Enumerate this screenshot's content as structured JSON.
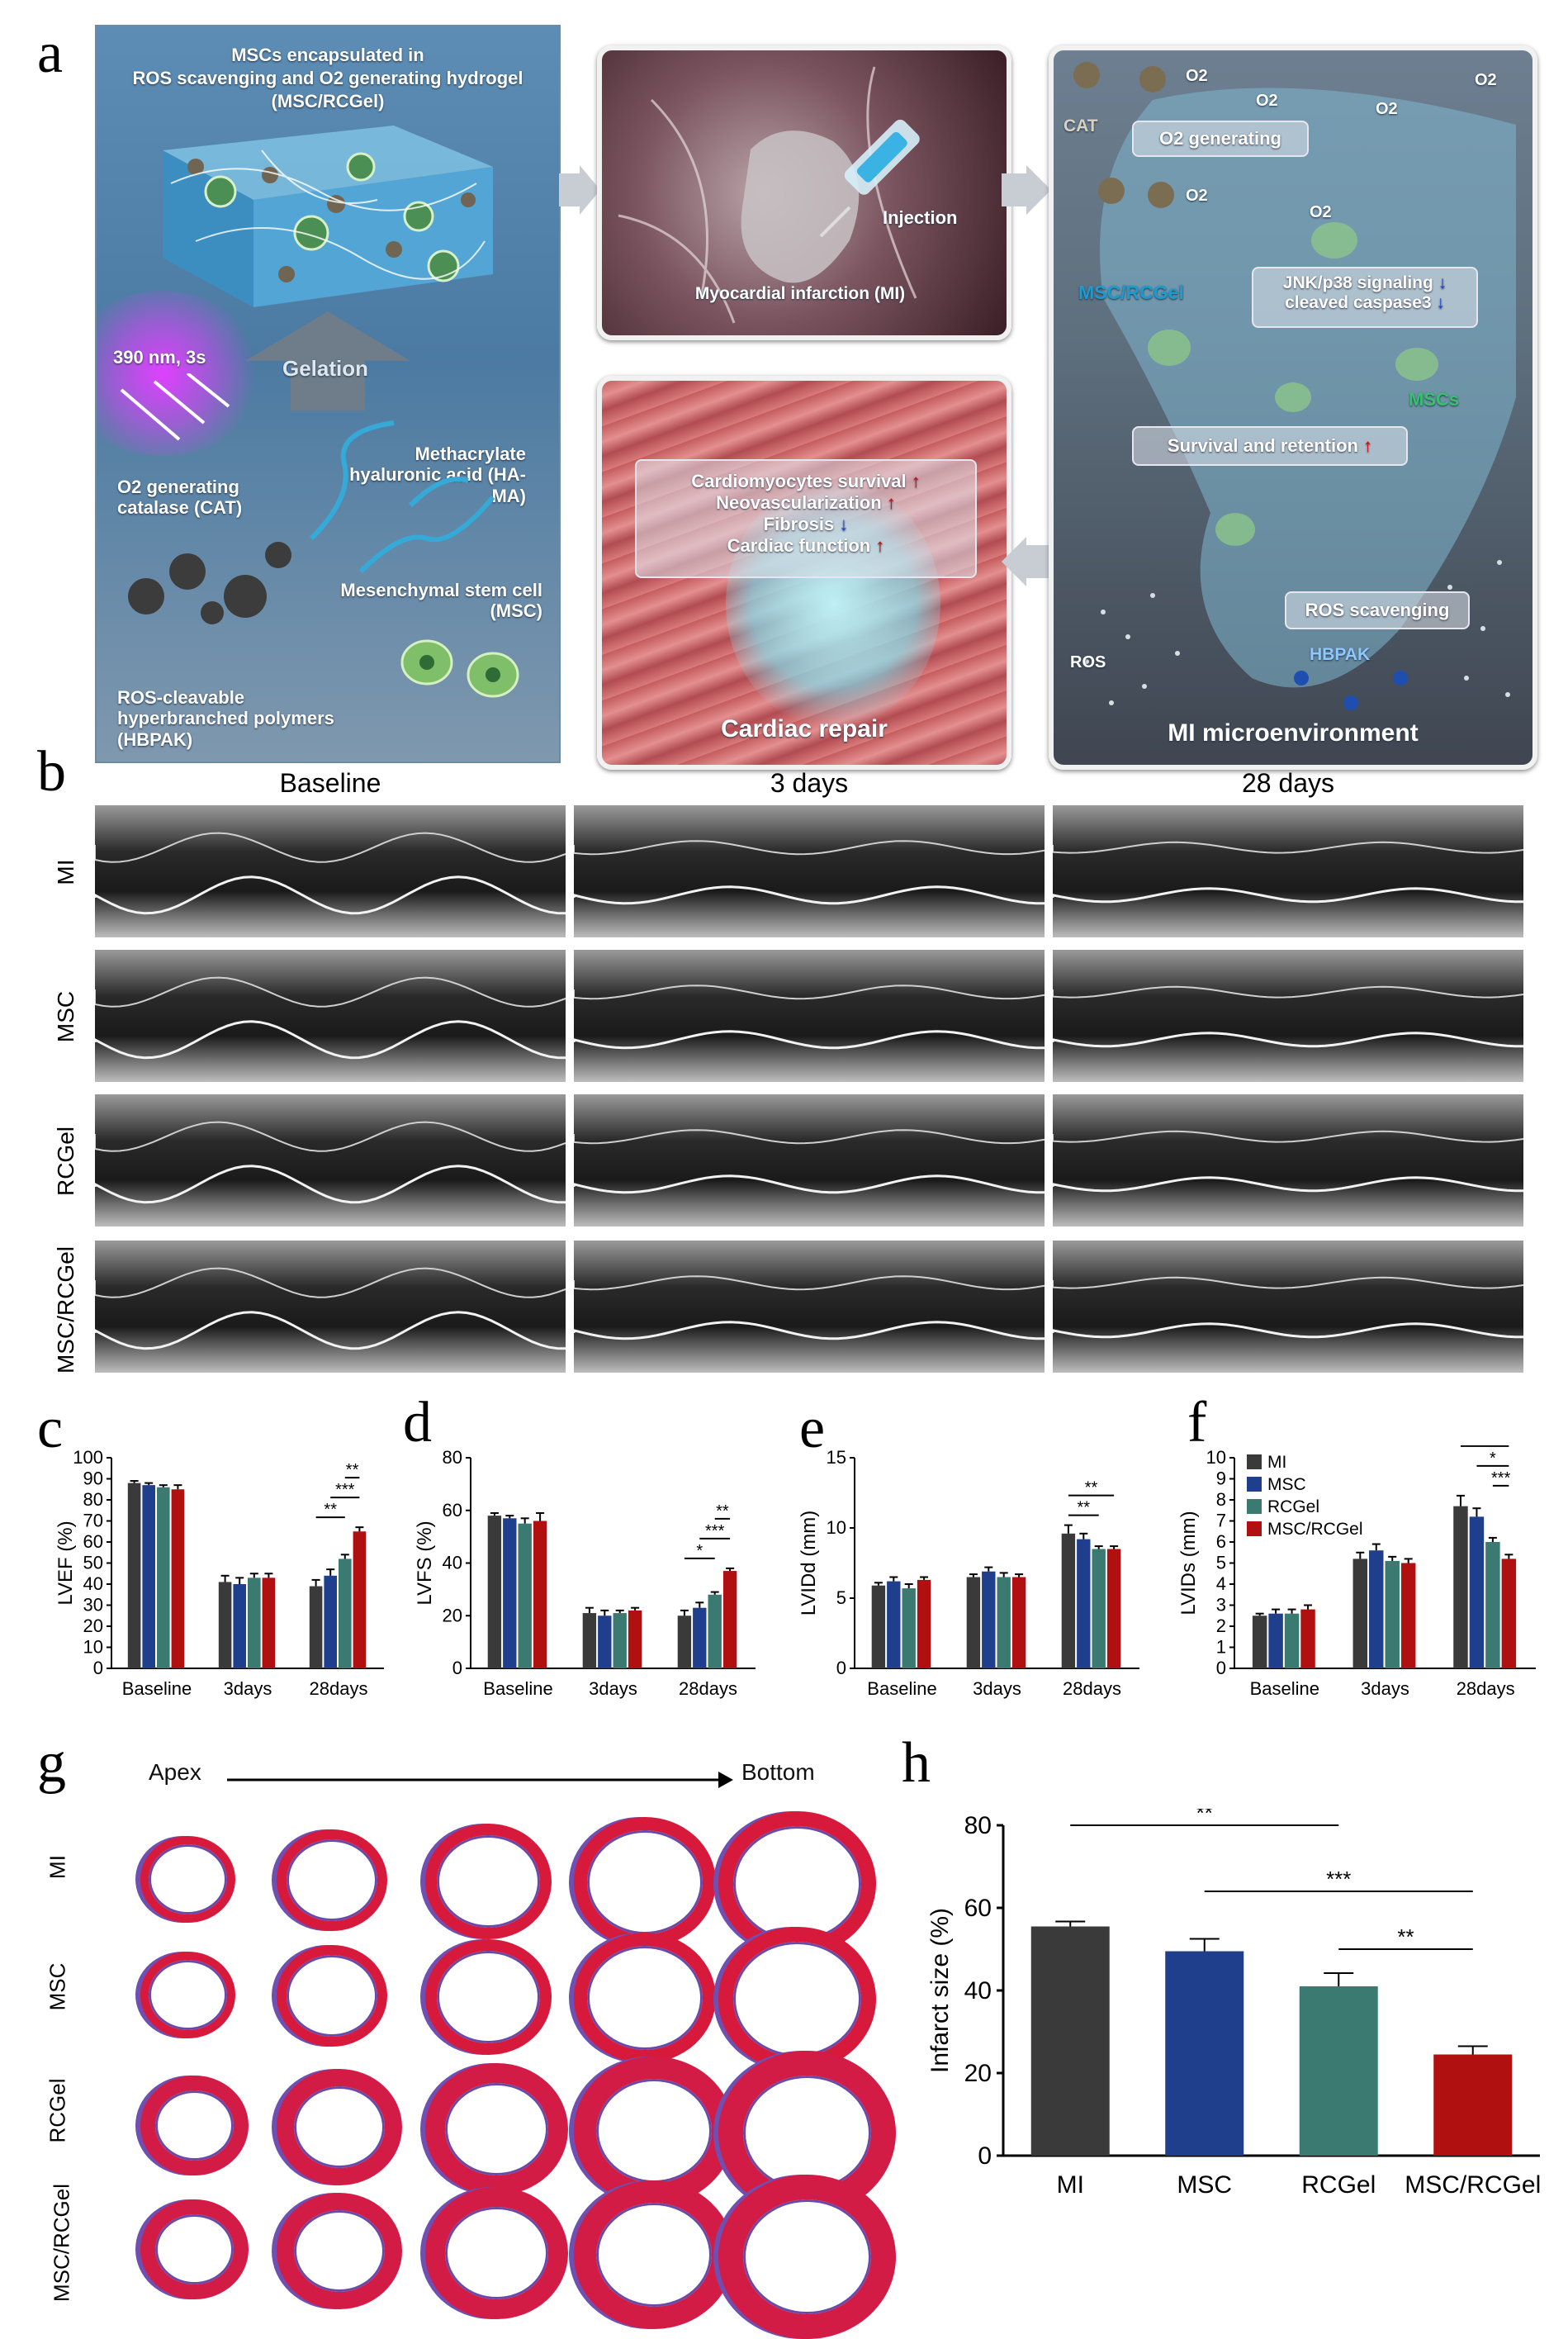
{
  "panel_labels": {
    "a": "a",
    "b": "b",
    "c": "c",
    "d": "d",
    "e": "e",
    "f": "f",
    "g": "g",
    "h": "h"
  },
  "schematic": {
    "title_line1": "MSCs encapsulated in",
    "title_line2": "ROS scavenging and O2 generating hydrogel",
    "title_line3": "(MSC/RCGel)",
    "uv": "390 nm, 3s",
    "gelation": "Gelation",
    "cat": "O2 generating catalase (CAT)",
    "hama": "Methacrylate hyaluronic acid (HA-MA)",
    "msc": "Mesenchymal stem cell (MSC)",
    "hbpak": "ROS-cleavable hyperbranched polymers (HBPAK)",
    "mi_card_label": "Myocardial infarction (MI)",
    "injection": "Injection",
    "repair_items": [
      "Cardiomyocytes survival",
      "Neovascularization",
      "Fibrosis",
      "Cardiac function"
    ],
    "repair_arrows": [
      "up",
      "up",
      "down",
      "up"
    ],
    "cardiac_repair": "Cardiac repair",
    "micro_cat": "CAT",
    "o2_generating": "O2 generating",
    "o2": "O2",
    "msc_rcgel": "MSC/RCGel",
    "jnk": "JNK/p38 signaling",
    "caspase": "cleaved caspase3",
    "mscs": "MSCs",
    "survival": "Survival and retention",
    "ros_scavenging": "ROS scavenging",
    "ros": "ROS",
    "hbpak_short": "HBPAK",
    "mi_micro": "MI microenvironment"
  },
  "echo": {
    "columns": [
      "Baseline",
      "3 days",
      "28 days"
    ],
    "rows": [
      "MI",
      "MSC",
      "RCGel",
      "MSC/RCGel"
    ]
  },
  "colors": {
    "MI": "#3a3a3a",
    "MSC": "#1f3f8c",
    "RCGel": "#3b7a70",
    "MSC/RCGel": "#b01010"
  },
  "chart_data": [
    {
      "id": "c",
      "type": "bar",
      "ylabel": "LVEF (%)",
      "ylim": [
        0,
        100
      ],
      "yticks": [
        0,
        10,
        20,
        30,
        40,
        50,
        60,
        70,
        80,
        90,
        100
      ],
      "categories": [
        "Baseline",
        "3days",
        "28days"
      ],
      "series": [
        {
          "name": "MI",
          "values": [
            88,
            41,
            39
          ]
        },
        {
          "name": "MSC",
          "values": [
            87,
            40,
            44
          ]
        },
        {
          "name": "RCGel",
          "values": [
            86,
            43,
            52
          ]
        },
        {
          "name": "MSC/RCGel",
          "values": [
            85,
            43,
            65
          ]
        }
      ],
      "errors": [
        [
          1,
          3,
          3
        ],
        [
          1,
          3,
          3
        ],
        [
          1,
          2,
          2
        ],
        [
          2,
          2,
          2
        ]
      ],
      "sig": [
        {
          "from": 0,
          "to": 2,
          "label": "**",
          "level": 1
        },
        {
          "from": 1,
          "to": 3,
          "label": "***",
          "level": 2
        },
        {
          "from": 2,
          "to": 3,
          "label": "**",
          "level": 3
        }
      ]
    },
    {
      "id": "d",
      "type": "bar",
      "ylabel": "LVFS (%)",
      "ylim": [
        0,
        80
      ],
      "yticks": [
        0,
        20,
        40,
        60,
        80
      ],
      "categories": [
        "Baseline",
        "3days",
        "28days"
      ],
      "series": [
        {
          "name": "MI",
          "values": [
            58,
            21,
            20
          ]
        },
        {
          "name": "MSC",
          "values": [
            57,
            20,
            23
          ]
        },
        {
          "name": "RCGel",
          "values": [
            55,
            21,
            28
          ]
        },
        {
          "name": "MSC/RCGel",
          "values": [
            56,
            22,
            37
          ]
        }
      ],
      "errors": [
        [
          1,
          2,
          2
        ],
        [
          1,
          2,
          2
        ],
        [
          2,
          1,
          1
        ],
        [
          3,
          1,
          1
        ]
      ],
      "sig": [
        {
          "from": 0,
          "to": 2,
          "label": "*",
          "level": 1
        },
        {
          "from": 1,
          "to": 3,
          "label": "***",
          "level": 2
        },
        {
          "from": 2,
          "to": 3,
          "label": "**",
          "level": 3
        }
      ]
    },
    {
      "id": "e",
      "type": "bar",
      "ylabel": "LVIDd (mm)",
      "ylim": [
        0,
        15
      ],
      "yticks": [
        0,
        5,
        10,
        15
      ],
      "categories": [
        "Baseline",
        "3days",
        "28days"
      ],
      "series": [
        {
          "name": "MI",
          "values": [
            5.9,
            6.5,
            9.6
          ]
        },
        {
          "name": "MSC",
          "values": [
            6.2,
            6.9,
            9.2
          ]
        },
        {
          "name": "RCGel",
          "values": [
            5.7,
            6.5,
            8.5
          ]
        },
        {
          "name": "MSC/RCGel",
          "values": [
            6.3,
            6.5,
            8.5
          ]
        }
      ],
      "errors": [
        [
          0.2,
          0.2,
          0.6
        ],
        [
          0.3,
          0.3,
          0.4
        ],
        [
          0.3,
          0.3,
          0.2
        ],
        [
          0.2,
          0.2,
          0.2
        ]
      ],
      "sig": [
        {
          "from": 0,
          "to": 2,
          "label": "**",
          "level": 1
        },
        {
          "from": 0,
          "to": 3,
          "label": "**",
          "level": 2
        }
      ]
    },
    {
      "id": "f",
      "type": "bar",
      "ylabel": "LVIDs (mm)",
      "ylim": [
        0,
        10
      ],
      "yticks": [
        0,
        1,
        2,
        3,
        4,
        5,
        6,
        7,
        8,
        9,
        10
      ],
      "categories": [
        "Baseline",
        "3days",
        "28days"
      ],
      "series": [
        {
          "name": "MI",
          "values": [
            2.5,
            5.2,
            7.7
          ]
        },
        {
          "name": "MSC",
          "values": [
            2.6,
            5.6,
            7.2
          ]
        },
        {
          "name": "RCGel",
          "values": [
            2.6,
            5.1,
            6.0
          ]
        },
        {
          "name": "MSC/RCGel",
          "values": [
            2.8,
            5.0,
            5.2
          ]
        }
      ],
      "errors": [
        [
          0.1,
          0.3,
          0.5
        ],
        [
          0.2,
          0.3,
          0.4
        ],
        [
          0.2,
          0.2,
          0.2
        ],
        [
          0.2,
          0.2,
          0.2
        ]
      ],
      "legend": [
        "MI",
        "MSC",
        "RCGel",
        "MSC/RCGel"
      ],
      "sig": [
        {
          "from": 0,
          "to": 3,
          "label": "***",
          "level": 3
        },
        {
          "from": 1,
          "to": 3,
          "label": "*",
          "level": 2
        },
        {
          "from": 2,
          "to": 3,
          "label": "***",
          "level": 1
        }
      ]
    },
    {
      "id": "h",
      "type": "bar",
      "ylabel": "Infarct size (%)",
      "ylim": [
        0,
        80
      ],
      "yticks": [
        0,
        20,
        40,
        60,
        80
      ],
      "categories": [
        "MI",
        "MSC",
        "RCGel",
        "MSC/RCGel"
      ],
      "values": [
        55.5,
        49.5,
        41,
        24.5
      ],
      "errors": [
        1.2,
        3,
        3.2,
        2
      ],
      "sig": [
        {
          "from": 0,
          "to": 2,
          "label": "**",
          "level": 3
        },
        {
          "from": 1,
          "to": 3,
          "label": "***",
          "level": 2
        },
        {
          "from": 2,
          "to": 3,
          "label": "**",
          "level": 1
        }
      ]
    }
  ],
  "staining": {
    "apex": "Apex",
    "bottom": "Bottom",
    "rows": [
      "MI",
      "MSC",
      "RCGel",
      "MSC/RCGel"
    ]
  }
}
